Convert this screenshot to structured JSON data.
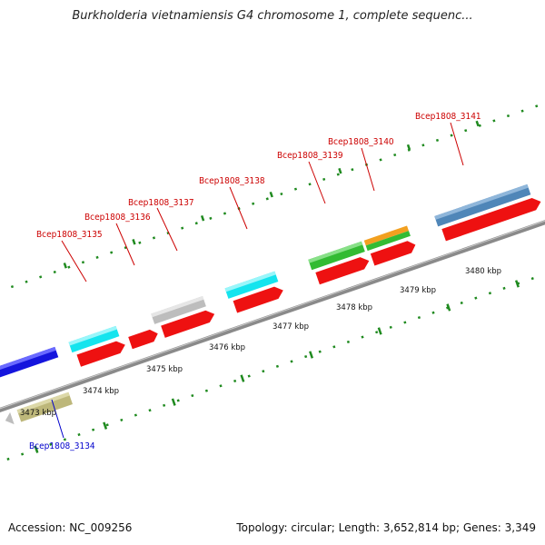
{
  "title": "Burkholderia vietnamiensis G4 chromosome 1, complete sequenc...",
  "footer": {
    "accession": "Accession: NC_009256",
    "genome_info": "Topology: circular; Length: 3,652,814 bp; Genes: 3,349"
  },
  "colors": {
    "backbone": "#8a8a8a",
    "tick": "#1f8a1f",
    "label_red": "#cc0000",
    "label_blue": "#0000cc",
    "cds_red": "#ee1111",
    "cyan": "#14e4ee",
    "gray": "#bdbdbd",
    "green": "#33bb33",
    "orange": "#f2a020",
    "steelblue": "#4f86b8",
    "khaki": "#bdb77a",
    "blue": "#1515dd"
  },
  "scale_labels": [
    "3473 kbp",
    "3474 kbp",
    "3475 kbp",
    "3476 kbp",
    "3477 kbp",
    "3478 kbp",
    "3479 kbp",
    "3480 kbp"
  ],
  "gene_labels": [
    {
      "id": "g3134",
      "text": "Bcep1808_3134",
      "color": "blue"
    },
    {
      "id": "g3135",
      "text": "Bcep1808_3135",
      "color": "red"
    },
    {
      "id": "g3136",
      "text": "Bcep1808_3136",
      "color": "red"
    },
    {
      "id": "g3137",
      "text": "Bcep1808_3137",
      "color": "red"
    },
    {
      "id": "g3138",
      "text": "Bcep1808_3138",
      "color": "red"
    },
    {
      "id": "g3139",
      "text": "Bcep1808_3139",
      "color": "red"
    },
    {
      "id": "g3140",
      "text": "Bcep1808_3140",
      "color": "red"
    },
    {
      "id": "g3141",
      "text": "Bcep1808_3141",
      "color": "red"
    }
  ]
}
